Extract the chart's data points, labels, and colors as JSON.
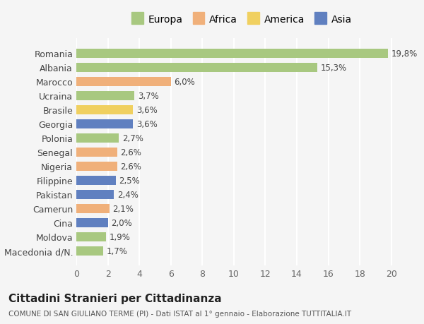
{
  "countries": [
    "Romania",
    "Albania",
    "Marocco",
    "Ucraina",
    "Brasile",
    "Georgia",
    "Polonia",
    "Senegal",
    "Nigeria",
    "Filippine",
    "Pakistan",
    "Camerun",
    "Cina",
    "Moldova",
    "Macedonia d/N."
  ],
  "values": [
    19.8,
    15.3,
    6.0,
    3.7,
    3.6,
    3.6,
    2.7,
    2.6,
    2.6,
    2.5,
    2.4,
    2.1,
    2.0,
    1.9,
    1.7
  ],
  "labels": [
    "19,8%",
    "15,3%",
    "6,0%",
    "3,7%",
    "3,6%",
    "3,6%",
    "2,7%",
    "2,6%",
    "2,6%",
    "2,5%",
    "2,4%",
    "2,1%",
    "2,0%",
    "1,9%",
    "1,7%"
  ],
  "continents": [
    "Europa",
    "Europa",
    "Africa",
    "Europa",
    "America",
    "Asia",
    "Europa",
    "Africa",
    "Africa",
    "Asia",
    "Asia",
    "Africa",
    "Asia",
    "Europa",
    "Europa"
  ],
  "colors": {
    "Europa": "#a8c880",
    "Africa": "#f0b07a",
    "America": "#f0d060",
    "Asia": "#6080c0"
  },
  "legend_order": [
    "Europa",
    "Africa",
    "America",
    "Asia"
  ],
  "title": "Cittadini Stranieri per Cittadinanza",
  "subtitle": "COMUNE DI SAN GIULIANO TERME (PI) - Dati ISTAT al 1° gennaio - Elaborazione TUTTITALIA.IT",
  "xlim": [
    0,
    21
  ],
  "xticks": [
    0,
    2,
    4,
    6,
    8,
    10,
    12,
    14,
    16,
    18,
    20
  ],
  "background_color": "#f5f5f5",
  "grid_color": "#ffffff"
}
